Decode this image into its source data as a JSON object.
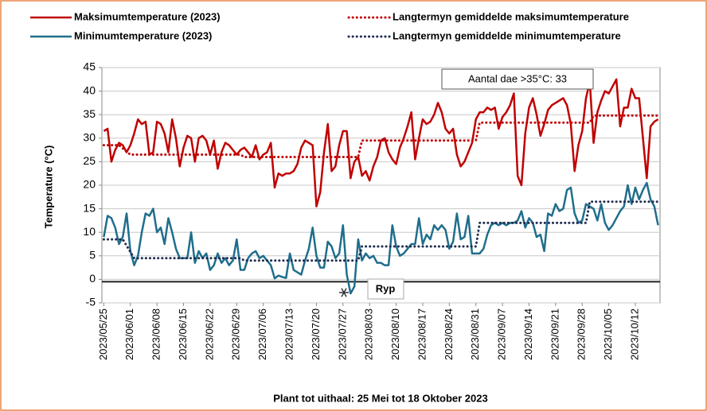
{
  "chart_data": {
    "type": "line",
    "x_label": "Plant tot uithaal: 25 Mei tot 18 Oktober 2023",
    "y_label": "Temperature (°C)",
    "ylim": [
      -5,
      45
    ],
    "yticks": [
      -5,
      0,
      5,
      10,
      15,
      20,
      25,
      30,
      35,
      40,
      45
    ],
    "grid": true,
    "frost_line": -0.5,
    "annotations": [
      {
        "text": "Aantal dae >35°C: 33"
      },
      {
        "text": "Ryp"
      }
    ],
    "x": [
      "2023/05/25",
      "2023/05/26",
      "2023/05/27",
      "2023/05/28",
      "2023/05/29",
      "2023/05/30",
      "2023/05/31",
      "2023/06/01",
      "2023/06/02",
      "2023/06/03",
      "2023/06/04",
      "2023/06/05",
      "2023/06/06",
      "2023/06/07",
      "2023/06/08",
      "2023/06/09",
      "2023/06/10",
      "2023/06/11",
      "2023/06/12",
      "2023/06/13",
      "2023/06/14",
      "2023/06/15",
      "2023/06/16",
      "2023/06/17",
      "2023/06/18",
      "2023/06/19",
      "2023/06/20",
      "2023/06/21",
      "2023/06/22",
      "2023/06/23",
      "2023/06/24",
      "2023/06/25",
      "2023/06/26",
      "2023/06/27",
      "2023/06/28",
      "2023/06/29",
      "2023/06/30",
      "2023/07/01",
      "2023/07/02",
      "2023/07/03",
      "2023/07/04",
      "2023/07/05",
      "2023/07/06",
      "2023/07/07",
      "2023/07/08",
      "2023/07/09",
      "2023/07/10",
      "2023/07/11",
      "2023/07/12",
      "2023/07/13",
      "2023/07/14",
      "2023/07/15",
      "2023/07/16",
      "2023/07/17",
      "2023/07/18",
      "2023/07/19",
      "2023/07/20",
      "2023/07/21",
      "2023/07/22",
      "2023/07/23",
      "2023/07/24",
      "2023/07/25",
      "2023/07/26",
      "2023/07/27",
      "2023/07/28",
      "2023/07/29",
      "2023/07/30",
      "2023/07/31",
      "2023/08/01",
      "2023/08/02",
      "2023/08/03",
      "2023/08/04",
      "2023/08/05",
      "2023/08/06",
      "2023/08/07",
      "2023/08/08",
      "2023/08/09",
      "2023/08/10",
      "2023/08/11",
      "2023/08/12",
      "2023/08/13",
      "2023/08/14",
      "2023/08/15",
      "2023/08/16",
      "2023/08/17",
      "2023/08/18",
      "2023/08/19",
      "2023/08/20",
      "2023/08/21",
      "2023/08/22",
      "2023/08/23",
      "2023/08/24",
      "2023/08/25",
      "2023/08/26",
      "2023/08/27",
      "2023/08/28",
      "2023/08/29",
      "2023/08/30",
      "2023/08/31",
      "2023/09/01",
      "2023/09/02",
      "2023/09/03",
      "2023/09/04",
      "2023/09/05",
      "2023/09/06",
      "2023/09/07",
      "2023/09/08",
      "2023/09/09",
      "2023/09/10",
      "2023/09/11",
      "2023/09/12",
      "2023/09/13",
      "2023/09/14",
      "2023/09/15",
      "2023/09/16",
      "2023/09/17",
      "2023/09/18",
      "2023/09/19",
      "2023/09/20",
      "2023/09/21",
      "2023/09/22",
      "2023/09/23",
      "2023/09/24",
      "2023/09/25",
      "2023/09/26",
      "2023/09/27",
      "2023/09/28",
      "2023/09/29",
      "2023/09/30",
      "2023/10/01",
      "2023/10/02",
      "2023/10/03",
      "2023/10/04",
      "2023/10/05",
      "2023/10/06",
      "2023/10/07",
      "2023/10/08",
      "2023/10/09",
      "2023/10/10",
      "2023/10/11",
      "2023/10/12",
      "2023/10/13",
      "2023/10/14",
      "2023/10/15",
      "2023/10/16",
      "2023/10/17",
      "2023/10/18"
    ],
    "xticks": [
      "2023/05/25",
      "2023/06/01",
      "2023/06/08",
      "2023/06/15",
      "2023/06/22",
      "2023/06/29",
      "2023/07/06",
      "2023/07/13",
      "2023/07/20",
      "2023/07/27",
      "2023/08/03",
      "2023/08/10",
      "2023/08/17",
      "2023/08/24",
      "2023/08/31",
      "2023/09/07",
      "2023/09/14",
      "2023/09/21",
      "2023/09/28",
      "2023/10/05",
      "2023/10/12"
    ],
    "series": [
      {
        "name": "Maksimumtemperature (2023)",
        "color": "#c00000",
        "line_style": "solid",
        "values": [
          31.5,
          32,
          25,
          27.5,
          29,
          28.5,
          27,
          28.5,
          31,
          34,
          33,
          33.5,
          26.5,
          27,
          33.5,
          33,
          31,
          27,
          34,
          30,
          24,
          28,
          30.5,
          30,
          25,
          30,
          30.5,
          29.5,
          26.5,
          29.5,
          23.5,
          27,
          29,
          28.5,
          27.5,
          26.5,
          27.5,
          28,
          27,
          26,
          28.5,
          25.5,
          26.5,
          27,
          29,
          19.5,
          22.5,
          22,
          22.5,
          22.5,
          23,
          24.5,
          28,
          29.5,
          29,
          28.5,
          15.5,
          18.5,
          27,
          33,
          23,
          24,
          28.5,
          31.5,
          31.5,
          21.5,
          25,
          26,
          22,
          23,
          21,
          24,
          26,
          29.5,
          30,
          27,
          25.5,
          24.5,
          28,
          30,
          32.5,
          35.5,
          25.5,
          30,
          34,
          33,
          33.5,
          35,
          37.5,
          35.5,
          32,
          31,
          32,
          26.5,
          24,
          25,
          27,
          29,
          34,
          35.5,
          35.5,
          36.5,
          36,
          36.5,
          32,
          34.5,
          35.5,
          37,
          39.5,
          22,
          20,
          31,
          36.5,
          38.5,
          35,
          30.5,
          33,
          36,
          37,
          37.5,
          38,
          38.5,
          37,
          33,
          23,
          28.5,
          31.5,
          38.5,
          42,
          29,
          35.5,
          38,
          40,
          39.5,
          41,
          42.5,
          32.5,
          36.5,
          36.5,
          40.5,
          38.5,
          38.5,
          30,
          21.5,
          32.5,
          33.5,
          34
        ]
      },
      {
        "name": "Langtermyn gemiddelde maksimumtemperature",
        "color": "#c00000",
        "line_style": "dotted",
        "x": [
          "2023/05/25",
          "2023/05/29",
          "2023/06/01",
          "2023/06/30",
          "2023/07/01",
          "2023/07/31",
          "2023/08/01",
          "2023/08/31",
          "2023/09/01",
          "2023/09/30",
          "2023/10/01",
          "2023/10/18"
        ],
        "values": [
          28.5,
          28.5,
          26.5,
          26.5,
          26,
          26,
          29.5,
          29.5,
          33.3,
          33.3,
          34.8,
          34.8
        ]
      },
      {
        "name": "Minimumtemperature (2023)",
        "color": "#1f6e8c",
        "line_style": "solid",
        "values": [
          9,
          13.5,
          13,
          11,
          7.5,
          9,
          14,
          6,
          3,
          5,
          10,
          14,
          13.5,
          15,
          10,
          11,
          7.5,
          13,
          10,
          6.5,
          4.5,
          4.5,
          4.5,
          10,
          3.5,
          6,
          4.5,
          5.5,
          2,
          3,
          5.5,
          3.5,
          4.5,
          3,
          4,
          8.5,
          2,
          2,
          4.5,
          5.5,
          6,
          4.5,
          5,
          4,
          3,
          0.2,
          0.8,
          0.5,
          0.3,
          5.5,
          2,
          1.5,
          1,
          4,
          6.5,
          11,
          5,
          2.5,
          2.5,
          8,
          7,
          4.5,
          5.5,
          11.5,
          1,
          -3,
          -1.5,
          8.5,
          4,
          5.5,
          4.5,
          5,
          3.5,
          3.5,
          3,
          3,
          11.5,
          7,
          5,
          5.5,
          6.5,
          7.5,
          7.5,
          13,
          7.5,
          9.5,
          8.5,
          11.5,
          10.5,
          11.5,
          10.5,
          6.5,
          8,
          14,
          8.5,
          9,
          13.5,
          5.5,
          5.5,
          5.5,
          6.5,
          9.5,
          11.5,
          12,
          11.5,
          12,
          11.5,
          12,
          12,
          12.5,
          14.5,
          11,
          13,
          12,
          9,
          9.5,
          6,
          14,
          13.5,
          16,
          14.5,
          15,
          19,
          19.5,
          14,
          12,
          12.5,
          16,
          15.5,
          15,
          12.5,
          16,
          12,
          10.5,
          11.5,
          13,
          14.5,
          15.5,
          20,
          16,
          19.5,
          17,
          19,
          20.5,
          17,
          15.5,
          11.5
        ]
      },
      {
        "name": "Langtermyn gemiddelde minimumtemperature",
        "color": "#1f2d50",
        "line_style": "dotted",
        "x": [
          "2023/05/25",
          "2023/05/30",
          "2023/06/02",
          "2023/06/30",
          "2023/07/01",
          "2023/07/31",
          "2023/08/01",
          "2023/08/31",
          "2023/09/01",
          "2023/09/29",
          "2023/09/30",
          "2023/10/18"
        ],
        "values": [
          8.5,
          8.5,
          4.5,
          4.5,
          4,
          4,
          7,
          7,
          12,
          12,
          16.5,
          16.5
        ]
      }
    ]
  }
}
